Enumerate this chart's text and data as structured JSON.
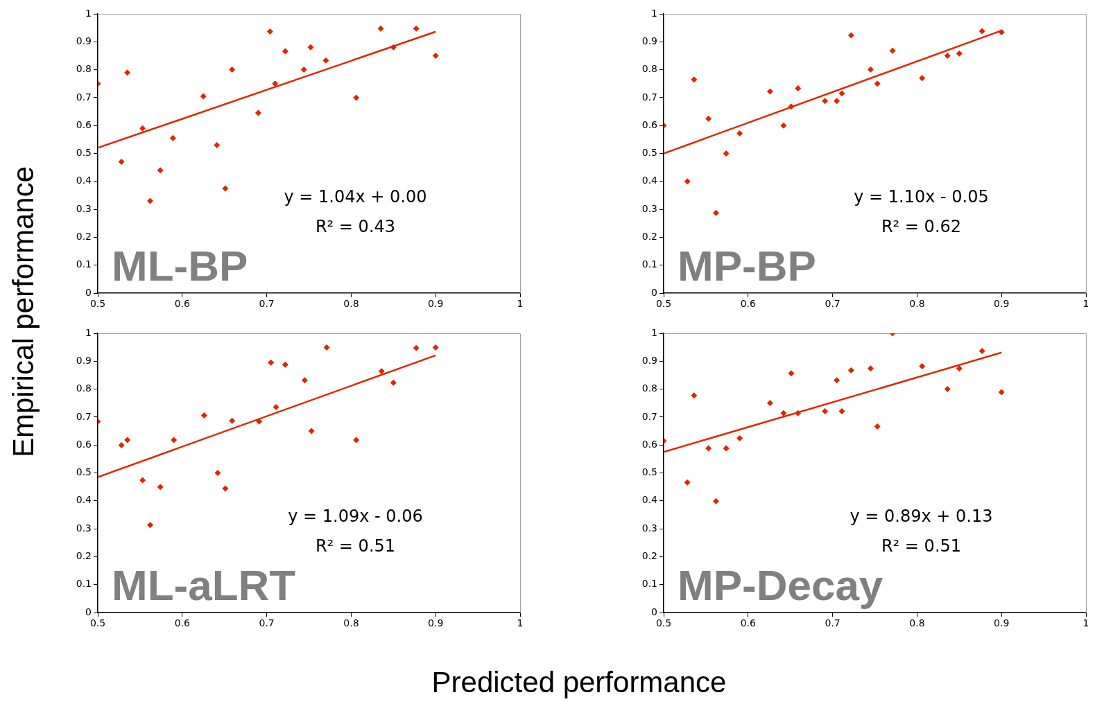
{
  "chart_data": [
    {
      "type": "scatter",
      "title": "ML-BP",
      "xlabel": "Predicted performance",
      "ylabel": "Empirical performance",
      "annotations": [
        "y = 1.04x + 0.00",
        "R² = 0.43"
      ],
      "xlim": [
        0.5,
        1
      ],
      "xticks": [
        0.5,
        0.6,
        0.7,
        0.8,
        0.9,
        1
      ],
      "ylim": [
        0,
        1
      ],
      "yticks": [
        0,
        0.1,
        0.2,
        0.3,
        0.4,
        0.5,
        0.6,
        0.7,
        0.8,
        0.9,
        1
      ],
      "grid": false,
      "legend": false,
      "series": [
        {
          "type": "scatter",
          "marker": "diamond",
          "color": "#e32400",
          "x": [
            0.5,
            0.528,
            0.535,
            0.553,
            0.562,
            0.574,
            0.589,
            0.625,
            0.641,
            0.651,
            0.659,
            0.69,
            0.704,
            0.71,
            0.722,
            0.744,
            0.752,
            0.77,
            0.806,
            0.835,
            0.85,
            0.877,
            0.9
          ],
          "values": [
            0.75,
            0.47,
            0.79,
            0.59,
            0.33,
            0.44,
            0.555,
            0.705,
            0.53,
            0.375,
            0.8,
            0.645,
            0.937,
            0.75,
            0.866,
            0.8,
            0.88,
            0.833,
            0.7,
            0.947,
            0.88,
            0.947,
            0.85
          ]
        },
        {
          "type": "line",
          "marker": "none",
          "color": "#e32400",
          "x": [
            0.5,
            0.9
          ],
          "values": [
            0.52,
            0.936
          ]
        }
      ]
    },
    {
      "type": "scatter",
      "title": "MP-BP",
      "annotations": [
        "y = 1.10x - 0.05",
        "R² = 0.62"
      ],
      "xlim": [
        0.5,
        1
      ],
      "xticks": [
        0.5,
        0.6,
        0.7,
        0.8,
        0.9,
        1
      ],
      "ylim": [
        0,
        1
      ],
      "yticks": [
        0,
        0.1,
        0.2,
        0.3,
        0.4,
        0.5,
        0.6,
        0.7,
        0.8,
        0.9,
        1
      ],
      "grid": false,
      "legend": false,
      "series": [
        {
          "type": "scatter",
          "marker": "diamond",
          "color": "#e32400",
          "x": [
            0.5,
            0.528,
            0.536,
            0.553,
            0.562,
            0.574,
            0.59,
            0.626,
            0.642,
            0.651,
            0.659,
            0.691,
            0.705,
            0.711,
            0.722,
            0.745,
            0.753,
            0.771,
            0.806,
            0.836,
            0.85,
            0.877,
            0.9
          ],
          "values": [
            0.6,
            0.4,
            0.765,
            0.625,
            0.287,
            0.5,
            0.572,
            0.722,
            0.6,
            0.668,
            0.733,
            0.688,
            0.688,
            0.715,
            0.923,
            0.801,
            0.75,
            0.868,
            0.77,
            0.85,
            0.858,
            0.938,
            0.934
          ]
        },
        {
          "type": "line",
          "marker": "none",
          "color": "#e32400",
          "x": [
            0.5,
            0.9
          ],
          "values": [
            0.5,
            0.94
          ]
        }
      ]
    },
    {
      "type": "scatter",
      "title": "ML-aLRT",
      "annotations": [
        "y = 1.09x - 0.06",
        "R² = 0.51"
      ],
      "xlim": [
        0.5,
        1
      ],
      "xticks": [
        0.5,
        0.6,
        0.7,
        0.8,
        0.9,
        1
      ],
      "ylim": [
        0,
        1
      ],
      "yticks": [
        0,
        0.1,
        0.2,
        0.3,
        0.4,
        0.5,
        0.6,
        0.7,
        0.8,
        0.9,
        1
      ],
      "grid": false,
      "legend": false,
      "series": [
        {
          "type": "scatter",
          "marker": "diamond",
          "color": "#e32400",
          "x": [
            0.5,
            0.528,
            0.535,
            0.553,
            0.562,
            0.574,
            0.59,
            0.626,
            0.642,
            0.651,
            0.659,
            0.691,
            0.705,
            0.711,
            0.722,
            0.745,
            0.753,
            0.771,
            0.806,
            0.836,
            0.85,
            0.877,
            0.9
          ],
          "values": [
            0.684,
            0.599,
            0.618,
            0.474,
            0.313,
            0.45,
            0.618,
            0.706,
            0.5,
            0.444,
            0.687,
            0.684,
            0.895,
            0.736,
            0.888,
            0.832,
            0.65,
            0.949,
            0.618,
            0.864,
            0.823,
            0.947,
            0.949
          ]
        },
        {
          "type": "line",
          "marker": "none",
          "color": "#e32400",
          "x": [
            0.5,
            0.9
          ],
          "values": [
            0.485,
            0.921
          ]
        }
      ]
    },
    {
      "type": "scatter",
      "title": "MP-Decay",
      "annotations": [
        "y = 0.89x + 0.13",
        "R² = 0.51"
      ],
      "xlim": [
        0.5,
        1
      ],
      "xticks": [
        0.5,
        0.6,
        0.7,
        0.8,
        0.9,
        1
      ],
      "ylim": [
        0,
        1
      ],
      "yticks": [
        0,
        0.1,
        0.2,
        0.3,
        0.4,
        0.5,
        0.6,
        0.7,
        0.8,
        0.9,
        1
      ],
      "grid": false,
      "legend": false,
      "series": [
        {
          "type": "scatter",
          "marker": "diamond",
          "color": "#e32400",
          "x": [
            0.5,
            0.528,
            0.536,
            0.553,
            0.562,
            0.574,
            0.59,
            0.626,
            0.642,
            0.651,
            0.659,
            0.691,
            0.705,
            0.711,
            0.722,
            0.745,
            0.753,
            0.771,
            0.806,
            0.836,
            0.85,
            0.877,
            0.9
          ],
          "values": [
            0.615,
            0.466,
            0.777,
            0.588,
            0.399,
            0.588,
            0.624,
            0.75,
            0.714,
            0.857,
            0.714,
            0.721,
            0.832,
            0.721,
            0.867,
            0.874,
            0.666,
            1,
            0.882,
            0.8,
            0.874,
            0.937,
            0.789
          ]
        },
        {
          "type": "line",
          "marker": "none",
          "color": "#e32400",
          "x": [
            0.5,
            0.9
          ],
          "values": [
            0.575,
            0.931
          ]
        }
      ]
    }
  ]
}
